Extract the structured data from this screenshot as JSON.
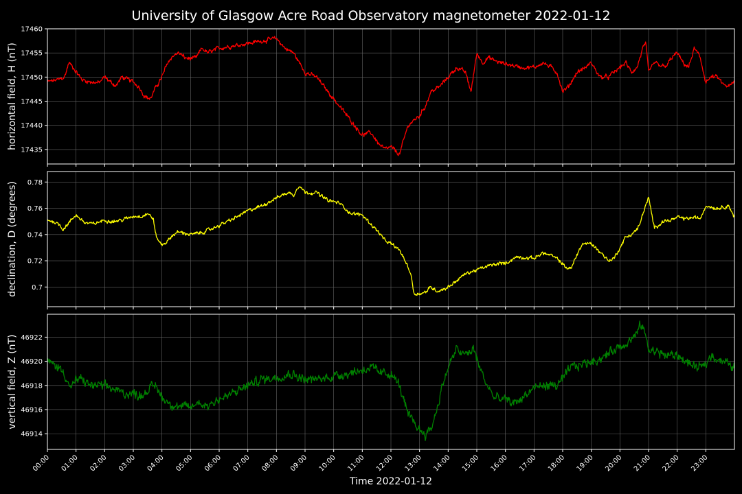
{
  "title": "University of Glasgow Acre Road Observatory magnetometer 2022-01-12",
  "colors": {
    "background": "#000000",
    "axes": "#ffffff",
    "grid": "#666666"
  },
  "chart_data": [
    {
      "type": "line",
      "ylabel": "horizontal field, H (nT)",
      "ylim": [
        17432,
        17460
      ],
      "yticks": [
        17435,
        17440,
        17445,
        17450,
        17455,
        17460
      ],
      "color": "#ff0000",
      "grid": true,
      "x_hours": [
        0,
        0.4,
        0.6,
        0.75,
        0.9,
        1.2,
        1.5,
        1.8,
        2.0,
        2.2,
        2.4,
        2.6,
        3.0,
        3.2,
        3.4,
        3.6,
        3.8,
        4.0,
        4.2,
        4.4,
        4.6,
        4.8,
        5.0,
        5.2,
        5.4,
        5.6,
        6.0,
        6.5,
        7.0,
        7.5,
        8.0,
        8.3,
        8.6,
        8.8,
        9.0,
        9.4,
        9.8,
        10.2,
        10.6,
        11.0,
        11.3,
        11.6,
        11.8,
        12.0,
        12.3,
        12.6,
        12.8,
        13.0,
        13.2,
        13.4,
        13.7,
        14.0,
        14.3,
        14.6,
        14.8,
        15.0,
        15.2,
        15.4,
        15.8,
        16.2,
        16.6,
        17.0,
        17.3,
        17.6,
        17.8,
        18.0,
        18.2,
        18.5,
        18.8,
        19.0,
        19.3,
        19.6,
        20.0,
        20.2,
        20.4,
        20.6,
        20.8,
        20.9,
        21.0,
        21.2,
        21.4,
        21.6,
        21.8,
        22.0,
        22.2,
        22.4,
        22.6,
        22.8,
        23.0,
        23.2,
        23.4,
        23.6,
        23.8,
        24.0
      ],
      "values": [
        17449,
        17449.5,
        17450,
        17453,
        17452,
        17449.5,
        17449,
        17448.8,
        17450,
        17449,
        17448.2,
        17450,
        17449,
        17448,
        17446,
        17445.5,
        17448,
        17450,
        17453,
        17454.5,
        17455,
        17454,
        17453.8,
        17454,
        17456,
        17455,
        17456,
        17456.5,
        17457,
        17457.5,
        17458,
        17456,
        17455,
        17453,
        17451,
        17450,
        17447,
        17444,
        17441,
        17438,
        17438.5,
        17436,
        17435,
        17435.5,
        17434,
        17440,
        17441,
        17442,
        17444,
        17447,
        17448,
        17450,
        17452,
        17451,
        17447,
        17455,
        17453,
        17454,
        17453,
        17452.5,
        17452,
        17452,
        17453,
        17452,
        17451,
        17447,
        17448,
        17451,
        17452,
        17453,
        17450,
        17450,
        17452,
        17453,
        17451,
        17452,
        17456,
        17457,
        17451,
        17453,
        17452.5,
        17452,
        17454,
        17455,
        17453,
        17452,
        17456,
        17454,
        17449,
        17450,
        17450,
        17448.5,
        17448,
        17449
      ],
      "noise": 0.4
    },
    {
      "type": "line",
      "ylabel": "declination, D (degrees)",
      "ylim": [
        0.685,
        0.788
      ],
      "yticks": [
        0.7,
        0.72,
        0.74,
        0.76,
        0.78
      ],
      "color": "#ffff00",
      "grid": true,
      "x_hours": [
        0,
        0.2,
        0.4,
        0.55,
        0.8,
        1.0,
        1.3,
        1.6,
        2.0,
        2.3,
        2.6,
        3.0,
        3.3,
        3.5,
        3.7,
        3.8,
        4.0,
        4.2,
        4.4,
        4.6,
        5.0,
        5.3,
        5.6,
        6.0,
        6.5,
        7.0,
        7.5,
        8.0,
        8.4,
        8.6,
        8.8,
        9.0,
        9.4,
        9.8,
        10.2,
        10.6,
        11.0,
        11.3,
        11.6,
        11.8,
        12.0,
        12.3,
        12.5,
        12.7,
        12.8,
        13.0,
        13.2,
        13.4,
        13.6,
        13.8,
        14.0,
        14.3,
        14.6,
        15.0,
        15.4,
        15.8,
        16.0,
        16.4,
        16.8,
        17.0,
        17.3,
        17.6,
        17.9,
        18.1,
        18.3,
        18.5,
        18.7,
        19.0,
        19.3,
        19.6,
        19.8,
        20.0,
        20.2,
        20.4,
        20.6,
        20.7,
        20.8,
        21.0,
        21.2,
        21.5,
        21.8,
        22.0,
        22.3,
        22.6,
        22.8,
        23.0,
        23.4,
        23.8,
        24.0
      ],
      "values": [
        0.751,
        0.75,
        0.748,
        0.744,
        0.75,
        0.755,
        0.749,
        0.748,
        0.751,
        0.75,
        0.751,
        0.754,
        0.754,
        0.756,
        0.752,
        0.738,
        0.732,
        0.735,
        0.74,
        0.742,
        0.74,
        0.741,
        0.743,
        0.747,
        0.752,
        0.758,
        0.762,
        0.768,
        0.772,
        0.77,
        0.778,
        0.772,
        0.772,
        0.766,
        0.764,
        0.756,
        0.755,
        0.748,
        0.741,
        0.735,
        0.733,
        0.728,
        0.72,
        0.71,
        0.695,
        0.695,
        0.696,
        0.7,
        0.697,
        0.698,
        0.7,
        0.705,
        0.71,
        0.713,
        0.716,
        0.718,
        0.718,
        0.723,
        0.722,
        0.722,
        0.726,
        0.724,
        0.72,
        0.715,
        0.714,
        0.725,
        0.733,
        0.733,
        0.727,
        0.72,
        0.722,
        0.73,
        0.738,
        0.74,
        0.744,
        0.748,
        0.756,
        0.768,
        0.745,
        0.75,
        0.751,
        0.753,
        0.752,
        0.753,
        0.752,
        0.762,
        0.76,
        0.762,
        0.753
      ],
      "noise": 0.0012
    },
    {
      "type": "line",
      "ylabel": "vertical field, Z (nT)",
      "ylim": [
        46912.7,
        46923.9
      ],
      "yticks": [
        46914,
        46916,
        46918,
        46920,
        46922
      ],
      "color": "#008000",
      "grid": true,
      "x_hours": [
        0,
        0.4,
        0.6,
        0.8,
        1.0,
        1.2,
        1.5,
        1.8,
        2.2,
        2.6,
        3.0,
        3.3,
        3.6,
        3.8,
        4.0,
        4.3,
        4.6,
        5.0,
        5.3,
        5.6,
        5.9,
        6.2,
        6.6,
        7.0,
        7.5,
        8.0,
        8.5,
        9.0,
        9.5,
        10.0,
        10.5,
        11.0,
        11.3,
        11.6,
        12.0,
        12.3,
        12.6,
        12.8,
        13.0,
        13.2,
        13.4,
        13.6,
        13.8,
        14.0,
        14.3,
        14.6,
        14.9,
        15.1,
        15.3,
        15.6,
        16.0,
        16.3,
        16.6,
        17.0,
        17.4,
        17.8,
        18.0,
        18.3,
        18.6,
        19.0,
        19.4,
        19.8,
        20.2,
        20.5,
        20.7,
        20.8,
        21.0,
        21.3,
        21.6,
        22.0,
        22.3,
        22.6,
        22.9,
        23.2,
        23.6,
        24.0
      ],
      "values": [
        46920,
        46919.5,
        46919,
        46917.8,
        46918.4,
        46918.5,
        46918,
        46918,
        46917.8,
        46917.4,
        46917.3,
        46917.2,
        46917.8,
        46918,
        46917,
        46916.5,
        46916.2,
        46916.2,
        46916.6,
        46916.3,
        46916.8,
        46917,
        46917.5,
        46918,
        46918.5,
        46918.7,
        46919,
        46918.5,
        46918.5,
        46918.8,
        46919,
        46919.3,
        46919.5,
        46919,
        46919,
        46918,
        46915.5,
        46915,
        46914.3,
        46914,
        46914.4,
        46916,
        46918,
        46919.5,
        46921,
        46920.5,
        46921,
        46919.5,
        46918.3,
        46917,
        46916.8,
        46916.5,
        46917,
        46917.8,
        46918,
        46918,
        46918.5,
        46919.5,
        46919.7,
        46920,
        46920.3,
        46921,
        46921.5,
        46922,
        46922.8,
        46923,
        46921,
        46920.8,
        46920.5,
        46920.5,
        46920,
        46919.5,
        46919.5,
        46920.5,
        46920,
        46919.5
      ],
      "noise": 0.35
    }
  ],
  "x_axis": {
    "label": "Time 2022-01-12",
    "xlim": [
      0,
      24
    ],
    "tick_labels": [
      "00:00",
      "01:00",
      "02:00",
      "03:00",
      "04:00",
      "05:00",
      "06:00",
      "07:00",
      "08:00",
      "09:00",
      "10:00",
      "11:00",
      "12:00",
      "13:00",
      "14:00",
      "15:00",
      "16:00",
      "17:00",
      "18:00",
      "19:00",
      "20:00",
      "21:00",
      "22:00",
      "23:00"
    ]
  }
}
